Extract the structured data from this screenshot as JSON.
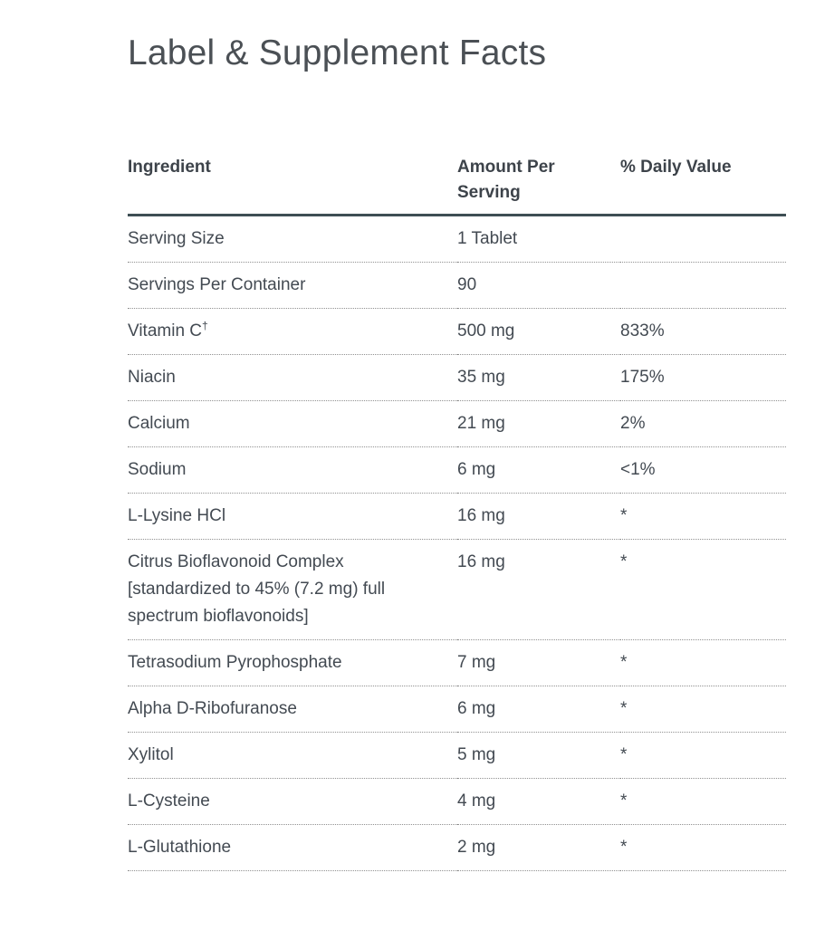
{
  "page": {
    "title": "Label & Supplement Facts"
  },
  "table": {
    "columns": [
      "Ingredient",
      "Amount Per Serving",
      "% Daily Value"
    ],
    "rows": [
      {
        "ingredient": "Serving Size",
        "amount": "1 Tablet",
        "daily_value": ""
      },
      {
        "ingredient": "Servings Per Container",
        "amount": "90",
        "daily_value": ""
      },
      {
        "ingredient": "Vitamin C",
        "footnote_marker": "†",
        "amount": "500 mg",
        "daily_value": "833%"
      },
      {
        "ingredient": "Niacin",
        "amount": "35 mg",
        "daily_value": "175%"
      },
      {
        "ingredient": "Calcium",
        "amount": "21 mg",
        "daily_value": "2%"
      },
      {
        "ingredient": "Sodium",
        "amount": "6 mg",
        "daily_value": "<1%"
      },
      {
        "ingredient": "L-Lysine HCl",
        "amount": "16 mg",
        "daily_value": "*"
      },
      {
        "ingredient": "Citrus Bioflavonoid Complex [standardized to 45% (7.2 mg) full spectrum bioflavonoids]",
        "amount": "16 mg",
        "daily_value": "*"
      },
      {
        "ingredient": "Tetrasodium Pyrophosphate",
        "amount": "7 mg",
        "daily_value": "*"
      },
      {
        "ingredient": "Alpha D-Ribofuranose",
        "amount": "6 mg",
        "daily_value": "*"
      },
      {
        "ingredient": "Xylitol",
        "amount": "5 mg",
        "daily_value": "*"
      },
      {
        "ingredient": "L-Cysteine",
        "amount": "4 mg",
        "daily_value": "*"
      },
      {
        "ingredient": "L-Glutathione",
        "amount": "2 mg",
        "daily_value": "*"
      }
    ],
    "colors": {
      "header_border": "#3e4f54",
      "row_border": "#919191",
      "body_text": "#434a52",
      "header_text": "#3d434a",
      "title_text": "#4b5055",
      "background": "#ffffff"
    }
  }
}
